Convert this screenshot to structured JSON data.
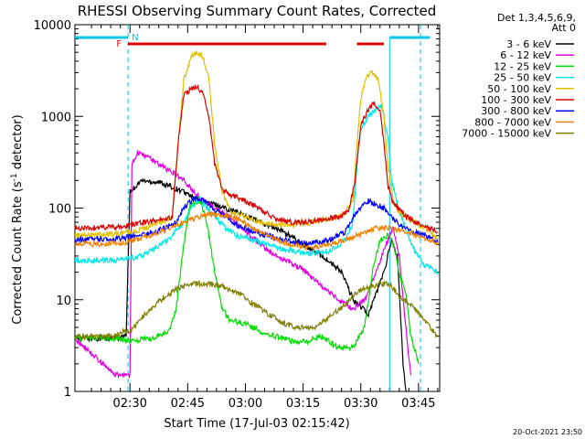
{
  "chart_data": {
    "type": "line",
    "title": "RHESSI Observing Summary Count Rates, Corrected",
    "xlabel": "Start Time (17-Jul-03 02:15:42)",
    "ylabel_main": "Corrected Count Rate (s",
    "ylabel_sup": "-1",
    "ylabel_tail": " detector",
    "ylabel_end": ")",
    "yscale": "log",
    "ylim": [
      1,
      10000
    ],
    "xlim_minutes": [
      15.7,
      90
    ],
    "x_ticks": [
      {
        "t": 30,
        "label": "02:30"
      },
      {
        "t": 45,
        "label": "02:45"
      },
      {
        "t": 60,
        "label": "03:00"
      },
      {
        "t": 75,
        "label": "03:15"
      },
      {
        "t": 90,
        "label": "03:30"
      },
      {
        "t": 105,
        "label": "03:45"
      }
    ],
    "y_ticks": [
      {
        "v": 1,
        "label": "1"
      },
      {
        "v": 10,
        "label": "10"
      },
      {
        "v": 100,
        "label": "100"
      },
      {
        "v": 1000,
        "label": "1000"
      },
      {
        "v": 10000,
        "label": "10000"
      }
    ],
    "legend_header": [
      "Det 1,3,4,5,6,9,",
      "Att 0"
    ],
    "legend_position": "right",
    "flags": {
      "F": "F",
      "N": "N",
      "flare_color": "#dd0000",
      "night_color": "#00c8e8"
    },
    "series": [
      {
        "name": "3 - 6 keV",
        "color": "#000000",
        "points": [
          [
            15.7,
            3.8
          ],
          [
            26,
            3.8
          ],
          [
            29,
            4
          ],
          [
            30,
            150
          ],
          [
            33,
            200
          ],
          [
            38,
            190
          ],
          [
            44,
            150
          ],
          [
            48,
            120
          ],
          [
            52,
            110
          ],
          [
            58,
            90
          ],
          [
            64,
            70
          ],
          [
            70,
            55
          ],
          [
            75,
            40
          ],
          [
            80,
            30
          ],
          [
            85,
            20
          ],
          [
            88,
            10
          ],
          [
            92,
            7
          ],
          [
            96,
            20
          ],
          [
            98,
            45
          ],
          [
            99.5,
            30
          ],
          [
            101,
            2
          ],
          [
            102,
            0.8
          ]
        ]
      },
      {
        "name": "6 - 12 keV",
        "color": "#e000e0",
        "points": [
          [
            15.7,
            3.8
          ],
          [
            26,
            1.5
          ],
          [
            30,
            1.5
          ],
          [
            30.5,
            300
          ],
          [
            32,
            400
          ],
          [
            36,
            330
          ],
          [
            40,
            260
          ],
          [
            44,
            200
          ],
          [
            48,
            130
          ],
          [
            52,
            100
          ],
          [
            56,
            80
          ],
          [
            60,
            55
          ],
          [
            64,
            40
          ],
          [
            68,
            30
          ],
          [
            72,
            25
          ],
          [
            76,
            20
          ],
          [
            80,
            14
          ],
          [
            84,
            10
          ],
          [
            88,
            8
          ],
          [
            91,
            10
          ],
          [
            94,
            20
          ],
          [
            97,
            45
          ],
          [
            98.5,
            60
          ],
          [
            100,
            30
          ],
          [
            101,
            10
          ],
          [
            103,
            1.5
          ]
        ]
      },
      {
        "name": "12 - 25 keV",
        "color": "#00dd00",
        "points": [
          [
            15.7,
            3.8
          ],
          [
            26,
            3.8
          ],
          [
            30,
            3.6
          ],
          [
            36,
            3.8
          ],
          [
            40,
            4.5
          ],
          [
            42,
            8
          ],
          [
            44,
            40
          ],
          [
            45.5,
            100
          ],
          [
            47,
            120
          ],
          [
            48.5,
            110
          ],
          [
            50,
            70
          ],
          [
            52,
            20
          ],
          [
            54,
            8
          ],
          [
            56,
            6
          ],
          [
            60,
            5.5
          ],
          [
            64,
            4.5
          ],
          [
            68,
            4
          ],
          [
            72,
            3.5
          ],
          [
            76,
            3.5
          ],
          [
            80,
            4
          ],
          [
            84,
            3
          ],
          [
            88,
            3
          ],
          [
            91,
            5
          ],
          [
            93,
            20
          ],
          [
            95,
            45
          ],
          [
            97,
            50
          ],
          [
            98.5,
            40
          ],
          [
            100,
            20
          ],
          [
            102,
            10
          ],
          [
            103,
            4
          ],
          [
            105,
            2
          ]
        ]
      },
      {
        "name": "25 - 50 keV",
        "color": "#00e8e8",
        "points": [
          [
            15.7,
            27
          ],
          [
            26,
            27
          ],
          [
            29,
            28
          ],
          [
            32,
            29
          ],
          [
            36,
            35
          ],
          [
            40,
            45
          ],
          [
            44,
            70
          ],
          [
            46,
            100
          ],
          [
            48,
            130
          ],
          [
            50,
            100
          ],
          [
            52,
            80
          ],
          [
            55,
            60
          ],
          [
            58,
            50
          ],
          [
            62,
            45
          ],
          [
            66,
            40
          ],
          [
            70,
            35
          ],
          [
            74,
            33
          ],
          [
            78,
            32
          ],
          [
            82,
            34
          ],
          [
            86,
            45
          ],
          [
            88,
            70
          ],
          [
            89,
            300
          ],
          [
            90,
            700
          ],
          [
            92,
            1000
          ],
          [
            94,
            1200
          ],
          [
            95.5,
            1300
          ],
          [
            97,
            600
          ],
          [
            98,
            200
          ],
          [
            100,
            90
          ],
          [
            102,
            55
          ],
          [
            104,
            35
          ],
          [
            106,
            25
          ],
          [
            110,
            20
          ]
        ]
      },
      {
        "name": "50 - 100 keV",
        "color": "#e0c000",
        "points": [
          [
            15.7,
            50
          ],
          [
            26,
            52
          ],
          [
            30,
            55
          ],
          [
            34,
            60
          ],
          [
            38,
            70
          ],
          [
            41,
            80
          ],
          [
            42.5,
            500
          ],
          [
            44,
            2500
          ],
          [
            46,
            4500
          ],
          [
            47.5,
            5000
          ],
          [
            49,
            4500
          ],
          [
            50.5,
            2500
          ],
          [
            52,
            500
          ],
          [
            54,
            150
          ],
          [
            56,
            95
          ],
          [
            60,
            80
          ],
          [
            64,
            70
          ],
          [
            68,
            65
          ],
          [
            72,
            65
          ],
          [
            76,
            68
          ],
          [
            80,
            75
          ],
          [
            84,
            80
          ],
          [
            86,
            90
          ],
          [
            88,
            120
          ],
          [
            89,
            500
          ],
          [
            90,
            1500
          ],
          [
            91.5,
            2800
          ],
          [
            93,
            3000
          ],
          [
            94.5,
            2500
          ],
          [
            96,
            1000
          ],
          [
            97,
            300
          ],
          [
            98.5,
            110
          ],
          [
            100,
            90
          ],
          [
            104,
            70
          ],
          [
            108,
            55
          ],
          [
            110,
            45
          ]
        ]
      },
      {
        "name": "100 - 300 keV",
        "color": "#dd0000",
        "points": [
          [
            15.7,
            60
          ],
          [
            26,
            62
          ],
          [
            30,
            65
          ],
          [
            34,
            70
          ],
          [
            38,
            75
          ],
          [
            41,
            80
          ],
          [
            42.5,
            500
          ],
          [
            44,
            1700
          ],
          [
            46,
            2000
          ],
          [
            47.5,
            2100
          ],
          [
            49,
            1800
          ],
          [
            50.5,
            1000
          ],
          [
            52,
            300
          ],
          [
            54,
            160
          ],
          [
            56,
            140
          ],
          [
            60,
            120
          ],
          [
            64,
            95
          ],
          [
            68,
            75
          ],
          [
            72,
            70
          ],
          [
            76,
            70
          ],
          [
            80,
            75
          ],
          [
            84,
            80
          ],
          [
            87,
            95
          ],
          [
            88.5,
            200
          ],
          [
            90,
            800
          ],
          [
            92,
            1200
          ],
          [
            93.5,
            1400
          ],
          [
            95,
            1200
          ],
          [
            96,
            500
          ],
          [
            97,
            180
          ],
          [
            98.5,
            110
          ],
          [
            102,
            80
          ],
          [
            106,
            65
          ],
          [
            110,
            55
          ]
        ]
      },
      {
        "name": "300 - 800 keV",
        "color": "#0000ff",
        "points": [
          [
            15.7,
            45
          ],
          [
            26,
            46
          ],
          [
            30,
            48
          ],
          [
            34,
            52
          ],
          [
            38,
            58
          ],
          [
            42,
            70
          ],
          [
            44,
            100
          ],
          [
            46,
            120
          ],
          [
            48,
            130
          ],
          [
            50,
            115
          ],
          [
            52,
            95
          ],
          [
            55,
            80
          ],
          [
            58,
            65
          ],
          [
            62,
            55
          ],
          [
            66,
            50
          ],
          [
            70,
            45
          ],
          [
            74,
            42
          ],
          [
            78,
            42
          ],
          [
            82,
            45
          ],
          [
            86,
            55
          ],
          [
            88,
            80
          ],
          [
            90,
            100
          ],
          [
            92,
            120
          ],
          [
            94,
            110
          ],
          [
            96,
            100
          ],
          [
            98,
            80
          ],
          [
            100,
            65
          ],
          [
            104,
            55
          ],
          [
            108,
            48
          ],
          [
            110,
            42
          ]
        ]
      },
      {
        "name": "800 - 7000 keV",
        "color": "#f08000",
        "points": [
          [
            15.7,
            40
          ],
          [
            26,
            41
          ],
          [
            30,
            43
          ],
          [
            34,
            48
          ],
          [
            38,
            55
          ],
          [
            42,
            65
          ],
          [
            46,
            75
          ],
          [
            50,
            85
          ],
          [
            54,
            85
          ],
          [
            58,
            75
          ],
          [
            62,
            60
          ],
          [
            66,
            50
          ],
          [
            70,
            42
          ],
          [
            74,
            38
          ],
          [
            78,
            37
          ],
          [
            82,
            40
          ],
          [
            86,
            45
          ],
          [
            90,
            52
          ],
          [
            94,
            60
          ],
          [
            98,
            60
          ],
          [
            102,
            55
          ],
          [
            106,
            48
          ],
          [
            110,
            42
          ]
        ]
      },
      {
        "name": "7000 - 15000 keV",
        "color": "#808000",
        "points": [
          [
            15.7,
            4
          ],
          [
            26,
            4
          ],
          [
            28,
            4.5
          ],
          [
            30,
            4.5
          ],
          [
            34,
            7
          ],
          [
            38,
            10
          ],
          [
            42,
            13
          ],
          [
            46,
            15
          ],
          [
            50,
            15
          ],
          [
            54,
            14
          ],
          [
            58,
            12
          ],
          [
            62,
            9
          ],
          [
            66,
            7
          ],
          [
            70,
            5.5
          ],
          [
            74,
            5
          ],
          [
            78,
            5
          ],
          [
            82,
            6.5
          ],
          [
            86,
            9
          ],
          [
            89,
            12
          ],
          [
            92,
            14
          ],
          [
            96,
            15
          ],
          [
            98,
            14
          ],
          [
            100,
            11
          ],
          [
            104,
            8
          ],
          [
            108,
            5
          ],
          [
            110,
            4
          ]
        ]
      }
    ]
  },
  "timestamp": "20-Oct-2021 23:50"
}
